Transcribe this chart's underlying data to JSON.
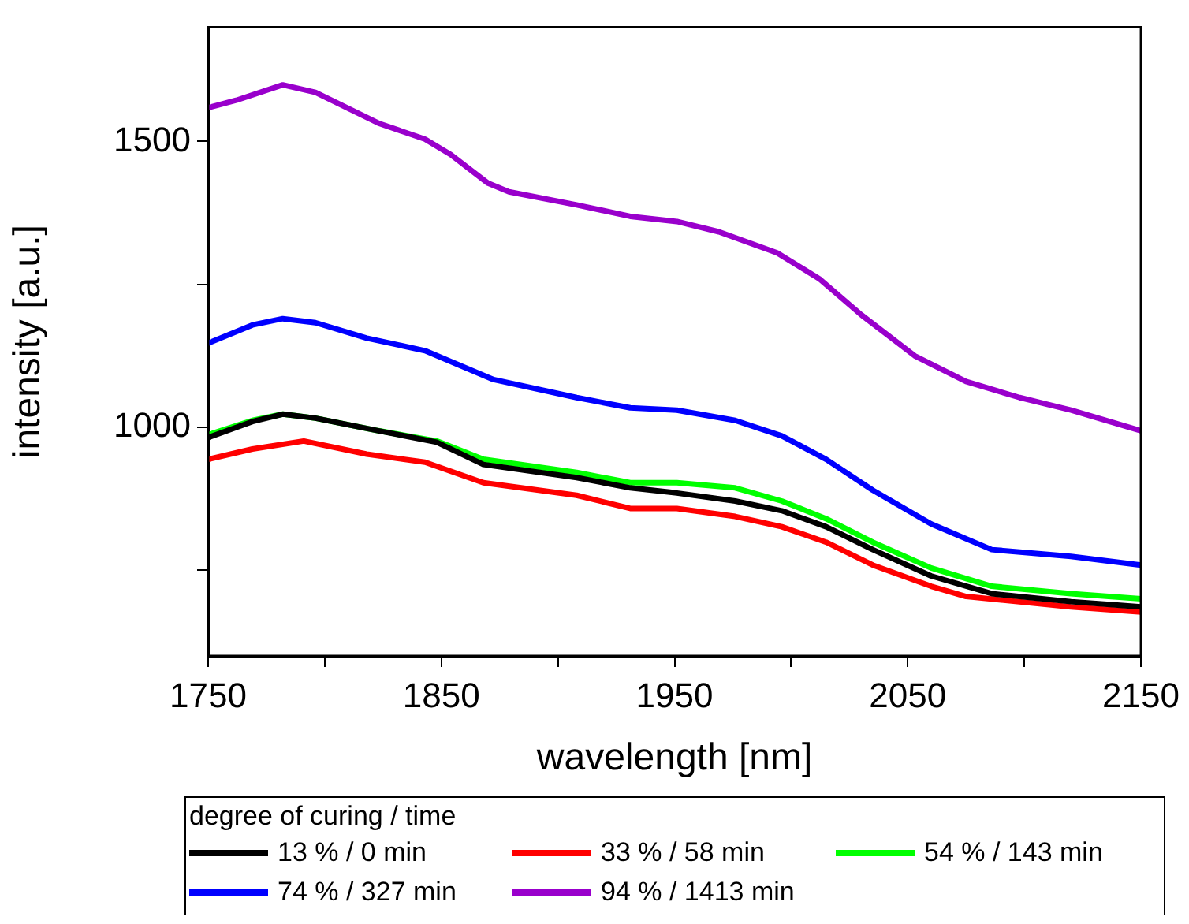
{
  "chart_data": {
    "type": "line",
    "xlabel": "wavelength [nm]",
    "ylabel": "intensity [a.u.]",
    "legend_title": "degree of curing / time",
    "legend": "bottom",
    "grid": false,
    "marker": "none",
    "line_style": "solid",
    "xlim": [
      1750,
      2150
    ],
    "xticks": [
      1750,
      {
        "value": 1800,
        "label": null
      },
      1850,
      {
        "value": 1900,
        "label": null
      },
      1950,
      {
        "value": 2000,
        "label": null
      },
      2050,
      {
        "value": 2100,
        "label": null
      },
      2150
    ],
    "ylim": [
      600,
      1700
    ],
    "yticks": [
      {
        "value": 750,
        "label": null
      },
      1000,
      {
        "value": 1250,
        "label": null
      },
      1500
    ],
    "series": [
      {
        "name": "13 % / 0 min",
        "color": "#000000",
        "x": [
          1750,
          1769,
          1782,
          1796,
          1823,
          1848,
          1868,
          1908,
          1931,
          1951,
          1976,
          1996,
          2015,
          2035,
          2060,
          2086,
          2120,
          2150
        ],
        "values": [
          982,
          1010,
          1023,
          1016,
          994,
          974,
          935,
          912,
          894,
          885,
          871,
          854,
          826,
          786,
          740,
          709,
          695,
          686
        ]
      },
      {
        "name": "33 % / 58 min",
        "color": "#ff0000",
        "x": [
          1750,
          1769,
          1791,
          1818,
          1843,
          1868,
          1908,
          1931,
          1951,
          1976,
          1996,
          2015,
          2035,
          2060,
          2075,
          2120,
          2150
        ],
        "values": [
          944,
          962,
          976,
          953,
          939,
          903,
          881,
          858,
          858,
          844,
          826,
          799,
          759,
          722,
          704,
          686,
          677
        ]
      },
      {
        "name": "54 % / 143 min",
        "color": "#00ff00",
        "x": [
          1750,
          1769,
          1782,
          1796,
          1823,
          1848,
          1868,
          1908,
          1931,
          1951,
          1976,
          1996,
          2015,
          2035,
          2060,
          2086,
          2120,
          2150
        ],
        "values": [
          987,
          1012,
          1023,
          1016,
          994,
          976,
          944,
          921,
          903,
          903,
          894,
          871,
          840,
          799,
          754,
          722,
          709,
          700
        ]
      },
      {
        "name": "74 % / 327 min",
        "color": "#0000ff",
        "x": [
          1750,
          1769,
          1782,
          1796,
          1818,
          1843,
          1872,
          1908,
          1931,
          1951,
          1976,
          1996,
          2015,
          2035,
          2060,
          2086,
          2120,
          2150
        ],
        "values": [
          1147,
          1179,
          1190,
          1183,
          1156,
          1134,
          1084,
          1052,
          1034,
          1030,
          1012,
          985,
          944,
          890,
          831,
          786,
          774,
          759
        ]
      },
      {
        "name": "94 % / 1413 min",
        "color": "#9900cc",
        "x": [
          1750,
          1762,
          1782,
          1796,
          1823,
          1843,
          1854,
          1870,
          1879,
          1908,
          1931,
          1951,
          1969,
          1994,
          2012,
          2030,
          2053,
          2075,
          2098,
          2120,
          2150
        ],
        "values": [
          1559,
          1572,
          1599,
          1586,
          1532,
          1504,
          1477,
          1427,
          1412,
          1389,
          1369,
          1360,
          1342,
          1305,
          1260,
          1197,
          1125,
          1080,
          1052,
          1030,
          994
        ]
      }
    ]
  }
}
